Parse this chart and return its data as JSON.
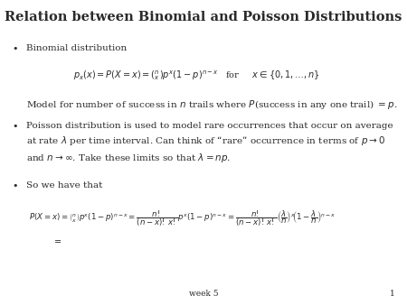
{
  "title": "Relation between Binomial and Poisson Distributions",
  "background_color": "#ffffff",
  "text_color": "#2a2a2a",
  "footer_text": "week 5",
  "footer_number": "1",
  "bullet1_header": "Binomial distribution",
  "bullet1_formula": "$p_x(x) = P(X = x) = \\binom{n}{x} p^x (1-p)^{n-x}$   for     $x \\in \\{0, 1, \\ldots, n\\}$",
  "bullet1_model": "Model for number of success in $n$ trails where $P$(success in any one trail) $= p$.",
  "bullet2_text": "Poisson distribution is used to model rare occurrences that occur on average\nat rate $\\lambda$ per time interval. Can think of “rare” occurrence in terms of $p \\to 0$\nand $n \\to \\infty$. Take these limits so that $\\lambda = np$.",
  "bullet3_header": "So we have that",
  "bullet3_formula1": "$P(X = x) = \\binom{n}{x} p^x (1-p)^{n-x} = \\dfrac{n!}{(n-x)!\\,x!} p^x (1-p)^{n-x} = \\dfrac{n!}{(n-x)!\\,x!} \\left(\\dfrac{\\lambda}{n}\\right)^x \\!\\left(1 - \\dfrac{\\lambda}{n}\\right)^{n-x}$",
  "bullet3_formula2": "$=$",
  "title_fontsize": 10.5,
  "body_fontsize": 7.5,
  "formula_fontsize": 7.0,
  "small_formula_fontsize": 6.2,
  "footer_fontsize": 6.5
}
